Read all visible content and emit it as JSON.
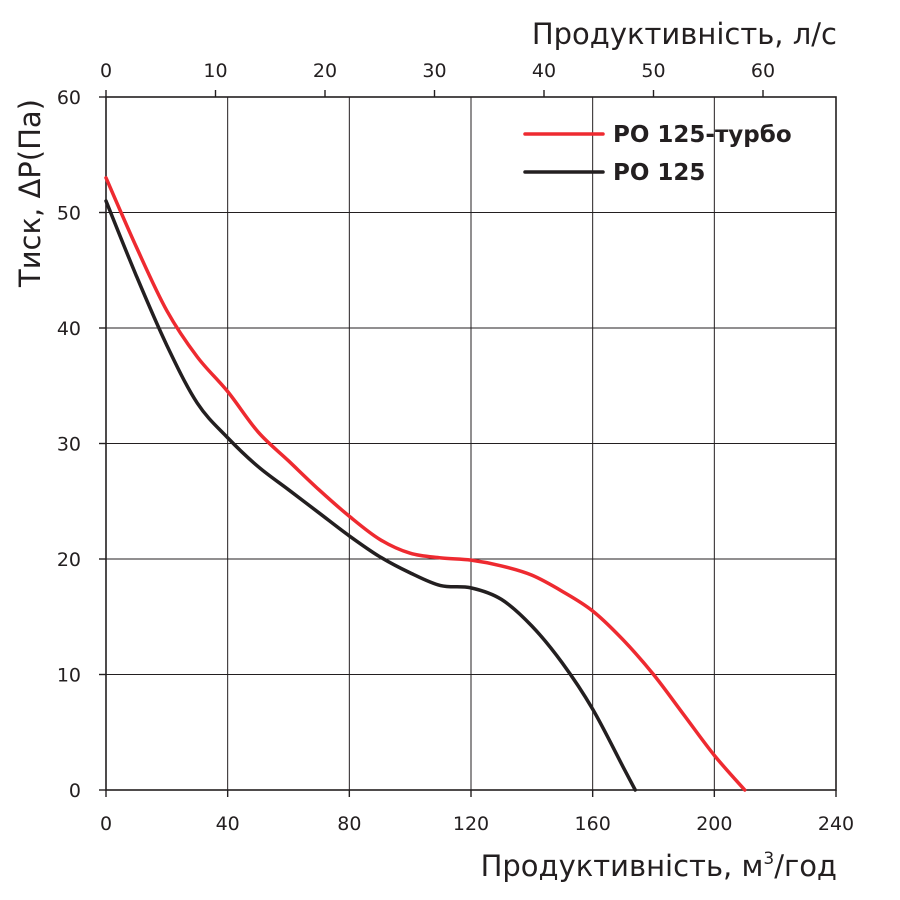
{
  "chart_data": {
    "type": "line",
    "x": {
      "label": "Продуктивність, м³/год",
      "label_main": "Продуктивність, м",
      "label_sup": "3",
      "label_tail": "/год",
      "range": [
        0,
        240
      ],
      "ticks": [
        0,
        40,
        80,
        120,
        160,
        200,
        240
      ]
    },
    "x_top": {
      "label": "Продуктивність, л/с",
      "ticks": [
        0,
        10,
        20,
        30,
        40,
        50,
        60
      ],
      "conversion_m3h_per_unit": 3.6
    },
    "y": {
      "label": "Тиск, ΔP(Па)",
      "range": [
        0,
        60
      ],
      "ticks": [
        0,
        10,
        20,
        30,
        40,
        50,
        60
      ]
    },
    "grid": true,
    "legend_position": "top-right",
    "series": [
      {
        "name": "РО 125-турбо",
        "color": "#ee2a30",
        "points": [
          [
            0,
            53
          ],
          [
            10,
            47
          ],
          [
            20,
            41.5
          ],
          [
            30,
            37.5
          ],
          [
            40,
            34.5
          ],
          [
            50,
            31
          ],
          [
            60,
            28.5
          ],
          [
            70,
            26
          ],
          [
            80,
            23.7
          ],
          [
            90,
            21.7
          ],
          [
            100,
            20.5
          ],
          [
            110,
            20.1
          ],
          [
            120,
            19.9
          ],
          [
            130,
            19.4
          ],
          [
            140,
            18.6
          ],
          [
            150,
            17.2
          ],
          [
            160,
            15.5
          ],
          [
            170,
            13
          ],
          [
            180,
            10
          ],
          [
            190,
            6.5
          ],
          [
            200,
            3
          ],
          [
            210,
            0
          ]
        ]
      },
      {
        "name": "РО 125",
        "color": "#231f20",
        "points": [
          [
            0,
            51
          ],
          [
            10,
            44.5
          ],
          [
            20,
            38.5
          ],
          [
            30,
            33.5
          ],
          [
            40,
            30.5
          ],
          [
            50,
            28
          ],
          [
            60,
            26
          ],
          [
            70,
            24
          ],
          [
            80,
            22
          ],
          [
            90,
            20.2
          ],
          [
            100,
            18.8
          ],
          [
            110,
            17.7
          ],
          [
            120,
            17.5
          ],
          [
            130,
            16.5
          ],
          [
            140,
            14.2
          ],
          [
            150,
            11
          ],
          [
            160,
            7
          ],
          [
            170,
            2
          ],
          [
            174,
            0
          ]
        ]
      }
    ]
  }
}
